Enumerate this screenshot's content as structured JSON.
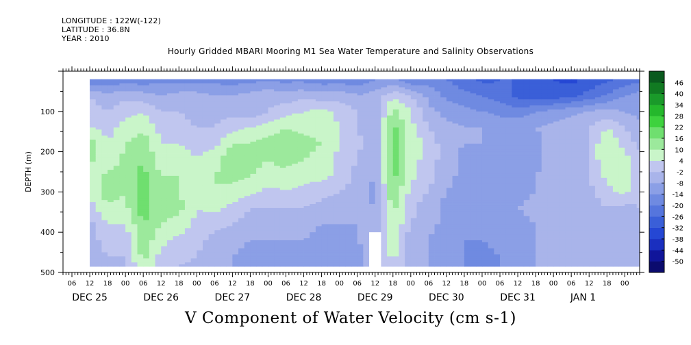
{
  "header": {
    "longitude": "LONGITUDE : 122W(-122)",
    "latitude": "LATITUDE : 36.8N",
    "year": "YEAR : 2010",
    "title": "Hourly Gridded MBARI Mooring M1 Sea Water Temperature and Salinity Observations"
  },
  "footer": {
    "title": "V Component of Water Velocity (cm s-1)"
  },
  "colors": {
    "strong_negative": "#0a0a6e",
    "negative": "#3a5fd8",
    "weak_negative": "#a9b4ea",
    "weak_positive": "#b6f0b6",
    "positive": "#2ed02e",
    "strong_positive": "#0a5a1e",
    "missing": "#ffffff"
  },
  "chart_data": {
    "type": "heatmap",
    "title": "Hourly Gridded MBARI Mooring M1 Sea Water Temperature and Salinity Observations",
    "variable": "V Component of Water Velocity (cm s-1)",
    "ylabel": "DEPTH (m)",
    "y_axis": {
      "ylim": [
        500,
        0
      ],
      "inverted": true,
      "ticks": [
        100,
        200,
        300,
        400,
        500
      ]
    },
    "x_axis": {
      "hour_ticks": [
        "06",
        "12",
        "18",
        "00",
        "06",
        "12",
        "18",
        "00",
        "06",
        "12",
        "18",
        "00",
        "06",
        "12",
        "18",
        "00",
        "06",
        "12",
        "18",
        "00",
        "06",
        "12",
        "18",
        "00",
        "06",
        "12",
        "18",
        "00",
        "06",
        "12",
        "18",
        "00"
      ],
      "date_labels": [
        "DEC 25",
        "DEC 26",
        "DEC 27",
        "DEC 28",
        "DEC 29",
        "DEC 30",
        "DEC 31",
        "JAN  1"
      ],
      "hour_tick_hours": [
        6,
        12,
        18,
        24,
        30,
        36,
        42,
        48,
        54,
        60,
        66,
        72,
        78,
        84,
        90,
        96,
        102,
        108,
        114,
        120,
        126,
        132,
        138,
        144,
        150,
        156,
        162,
        168,
        174,
        180,
        186,
        192
      ],
      "date_label_hours": [
        12,
        36,
        60,
        84,
        108,
        132,
        156,
        178
      ],
      "xlim_hours": [
        3,
        197
      ],
      "data_start_hours": 12,
      "data_end_hours": 197
    },
    "data_depth_range": [
      20,
      485
    ],
    "colorbar": {
      "levels": [
        -50,
        -44,
        -38,
        -32,
        -26,
        -20,
        -14,
        -8,
        -2,
        4,
        10,
        16,
        22,
        28,
        34,
        40,
        46
      ],
      "label_levels": [
        -50,
        -44,
        -38,
        -32,
        -26,
        -20,
        -14,
        -8,
        -2,
        4,
        10,
        16,
        22,
        28,
        34,
        40,
        46
      ],
      "colors": [
        "#0b0b6e",
        "#10159a",
        "#1a2fbf",
        "#2547d4",
        "#3a5fd8",
        "#5575dd",
        "#6f8ae1",
        "#8b9fe6",
        "#a9b4ea",
        "#c0c6ef",
        "#c9f5c9",
        "#9ce99c",
        "#6fdf6f",
        "#3ed23e",
        "#25b82c",
        "#1a9a2a",
        "#117a22",
        "#0a5a1e"
      ]
    },
    "depths": [
      20,
      60,
      100,
      140,
      180,
      220,
      260,
      300,
      340,
      380,
      420,
      460,
      485
    ],
    "times_hours": [
      12,
      18,
      24,
      30,
      36,
      42,
      48,
      54,
      60,
      66,
      72,
      78,
      84,
      90,
      96,
      102,
      108,
      114,
      120,
      126,
      132,
      138,
      144,
      150,
      156,
      162,
      168,
      174,
      180,
      186,
      192,
      197
    ],
    "values": [
      [
        -20,
        -20,
        -18,
        -18,
        -16,
        -16,
        -16,
        -16,
        -18,
        -16,
        -16,
        -16,
        -16,
        -18,
        -18,
        -18,
        -14,
        -14,
        -20,
        -16,
        -20,
        -24,
        -28,
        -26,
        -26,
        -30,
        -32,
        -34,
        -30,
        -28,
        -24,
        -22
      ],
      [
        -2,
        -6,
        -4,
        -6,
        -8,
        -6,
        -6,
        -8,
        -8,
        -6,
        -4,
        -6,
        -4,
        -6,
        -4,
        -8,
        -6,
        2,
        -2,
        -10,
        -16,
        -18,
        -20,
        -24,
        -28,
        -30,
        -30,
        -28,
        -24,
        -20,
        -14,
        -12
      ],
      [
        0,
        -2,
        2,
        4,
        -2,
        -2,
        -4,
        -4,
        -4,
        -6,
        -2,
        2,
        4,
        6,
        2,
        -2,
        -6,
        12,
        4,
        -6,
        -10,
        -12,
        -14,
        -16,
        -18,
        -14,
        -12,
        -10,
        -8,
        -6,
        -8,
        -10
      ],
      [
        4,
        2,
        6,
        8,
        2,
        0,
        -2,
        -2,
        2,
        4,
        6,
        10,
        8,
        8,
        4,
        -2,
        -6,
        18,
        6,
        -2,
        -6,
        -8,
        -8,
        -10,
        -8,
        -8,
        -6,
        -4,
        -2,
        4,
        -2,
        -6
      ],
      [
        14,
        4,
        10,
        14,
        4,
        4,
        2,
        2,
        10,
        10,
        14,
        14,
        12,
        10,
        4,
        0,
        -8,
        20,
        8,
        2,
        -6,
        -8,
        -8,
        -8,
        -8,
        -10,
        -6,
        -4,
        -2,
        10,
        2,
        -4
      ],
      [
        12,
        4,
        12,
        16,
        6,
        8,
        4,
        8,
        14,
        12,
        10,
        12,
        10,
        8,
        2,
        -2,
        -8,
        20,
        6,
        2,
        -6,
        -10,
        -10,
        -8,
        -10,
        -10,
        -4,
        -6,
        -2,
        10,
        6,
        2
      ],
      [
        6,
        12,
        14,
        18,
        10,
        10,
        8,
        10,
        12,
        10,
        8,
        8,
        6,
        6,
        2,
        -4,
        -8,
        18,
        6,
        0,
        -6,
        -10,
        -10,
        -8,
        -10,
        -8,
        -6,
        -6,
        -2,
        6,
        6,
        0
      ],
      [
        4,
        14,
        10,
        18,
        10,
        10,
        6,
        10,
        8,
        6,
        2,
        4,
        2,
        0,
        -2,
        -4,
        -10,
        16,
        2,
        -2,
        -8,
        -10,
        -12,
        -8,
        -10,
        -8,
        -6,
        -6,
        -4,
        2,
        6,
        -2
      ],
      [
        2,
        8,
        8,
        20,
        12,
        12,
        4,
        6,
        2,
        -2,
        -2,
        -2,
        -2,
        -4,
        -6,
        -6,
        -8,
        12,
        0,
        -6,
        -10,
        -12,
        -12,
        -10,
        -8,
        -6,
        -6,
        -4,
        -6,
        -2,
        -4,
        -2
      ],
      [
        -4,
        4,
        4,
        16,
        10,
        8,
        2,
        0,
        -2,
        -4,
        -6,
        -6,
        -6,
        -8,
        -8,
        -8,
        -6,
        10,
        -2,
        -6,
        -10,
        -12,
        -14,
        -12,
        -10,
        -8,
        -8,
        -6,
        -6,
        -6,
        -8,
        -4
      ],
      [
        -6,
        2,
        0,
        14,
        6,
        2,
        0,
        -4,
        -6,
        -8,
        -8,
        -8,
        -8,
        -10,
        -10,
        -8,
        -6,
        8,
        -6,
        -8,
        -12,
        -14,
        -14,
        -12,
        -10,
        -8,
        -8,
        -6,
        -6,
        -6,
        -8,
        -6
      ],
      [
        -8,
        -2,
        -2,
        12,
        2,
        0,
        -2,
        -6,
        -8,
        -10,
        -10,
        -10,
        -8,
        -10,
        -12,
        -10,
        -6,
        6,
        -6,
        -8,
        -12,
        -14,
        -16,
        -14,
        -10,
        -8,
        -8,
        -2,
        -4,
        -4,
        -6,
        -6
      ],
      [
        -8,
        -2,
        -4,
        10,
        0,
        -2,
        -4,
        -6,
        -8,
        -10,
        -10,
        -10,
        -8,
        -10,
        -12,
        -10,
        -6,
        4,
        -6,
        -8,
        -12,
        -14,
        -16,
        -14,
        -10,
        -8,
        -8,
        -2,
        -4,
        -4,
        -6,
        -6
      ]
    ],
    "missing_regions": [
      {
        "hours": [
          106.5,
          109.5
        ],
        "depth": [
          400,
          485
        ]
      }
    ]
  }
}
